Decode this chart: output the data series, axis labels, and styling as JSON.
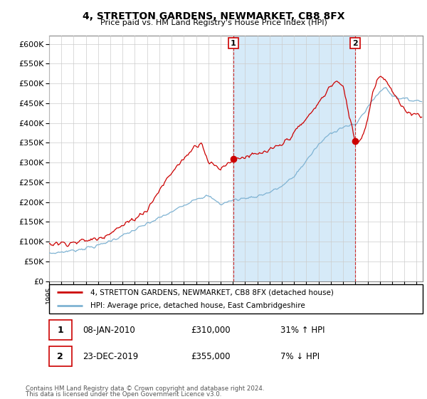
{
  "title": "4, STRETTON GARDENS, NEWMARKET, CB8 8FX",
  "subtitle": "Price paid vs. HM Land Registry's House Price Index (HPI)",
  "ytick_values": [
    0,
    50000,
    100000,
    150000,
    200000,
    250000,
    300000,
    350000,
    400000,
    450000,
    500000,
    550000,
    600000
  ],
  "xlim_start": 1995.0,
  "xlim_end": 2025.5,
  "ylim": [
    0,
    620000
  ],
  "red_color": "#cc0000",
  "blue_color": "#7fb3d3",
  "fill_color": "#d6eaf8",
  "vline_color": "#cc0000",
  "grid_color": "#cccccc",
  "bg_color": "#ffffff",
  "sale1_year": 2010.04,
  "sale1_price": 310000,
  "sale2_year": 2019.98,
  "sale2_price": 355000,
  "legend_label_red": "4, STRETTON GARDENS, NEWMARKET, CB8 8FX (detached house)",
  "legend_label_blue": "HPI: Average price, detached house, East Cambridgeshire",
  "annotation1_date": "08-JAN-2010",
  "annotation1_price": "£310,000",
  "annotation1_hpi": "31% ↑ HPI",
  "annotation2_date": "23-DEC-2019",
  "annotation2_price": "£355,000",
  "annotation2_hpi": "7% ↓ HPI",
  "footer1": "Contains HM Land Registry data © Crown copyright and database right 2024.",
  "footer2": "This data is licensed under the Open Government Licence v3.0."
}
